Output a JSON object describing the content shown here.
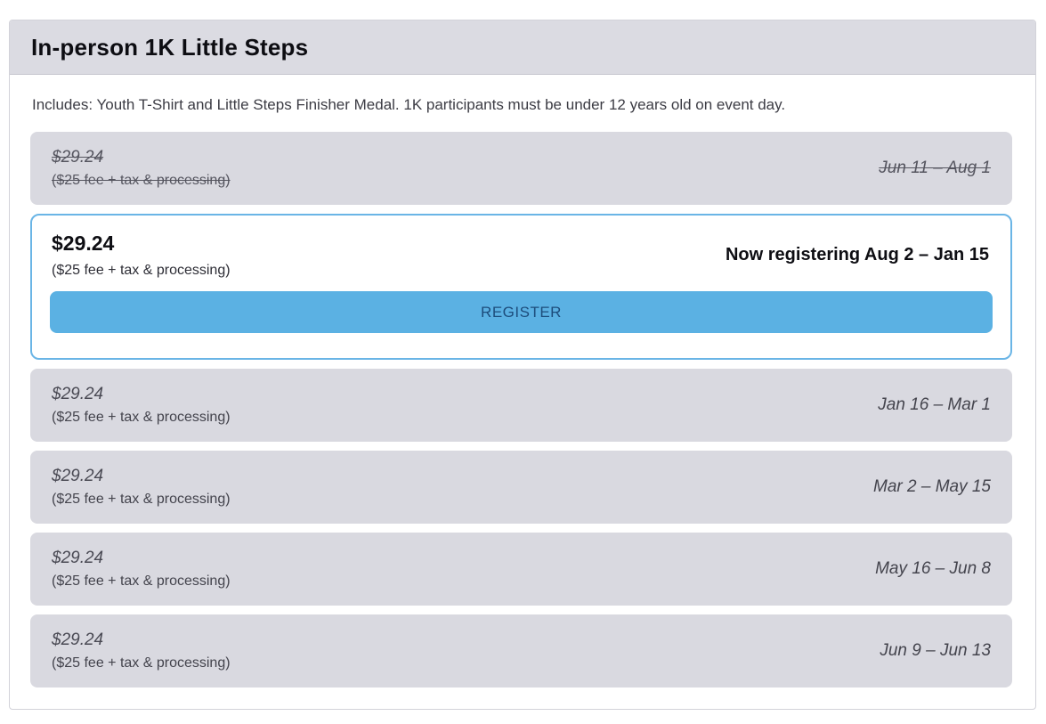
{
  "card": {
    "title": "In-person 1K Little Steps",
    "description": "Includes: Youth T-Shirt and Little Steps Finisher Medal. 1K participants must be under 12 years old on event day."
  },
  "tiers": [
    {
      "price": "$29.24",
      "fee": "($25 fee + tax & processing)",
      "dates": "Jun 11 – Aug 1",
      "status": "expired"
    },
    {
      "price": "$29.24",
      "fee": "($25 fee + tax & processing)",
      "dates": "Now registering Aug 2 – Jan 15",
      "status": "active",
      "register_label": "REGISTER"
    },
    {
      "price": "$29.24",
      "fee": "($25 fee + tax & processing)",
      "dates": "Jan 16 – Mar 1",
      "status": "upcoming"
    },
    {
      "price": "$29.24",
      "fee": "($25 fee + tax & processing)",
      "dates": "Mar 2 – May 15",
      "status": "upcoming"
    },
    {
      "price": "$29.24",
      "fee": "($25 fee + tax & processing)",
      "dates": "May 16 – Jun 8",
      "status": "upcoming"
    },
    {
      "price": "$29.24",
      "fee": "($25 fee + tax & processing)",
      "dates": "Jun 9 – Jun 13",
      "status": "upcoming"
    }
  ],
  "colors": {
    "header_background": "#dbdbe2",
    "row_background": "#d9d9e0",
    "active_border": "#6ab5e6",
    "button_background": "#5bb1e3",
    "button_text": "#1d4d7c"
  }
}
